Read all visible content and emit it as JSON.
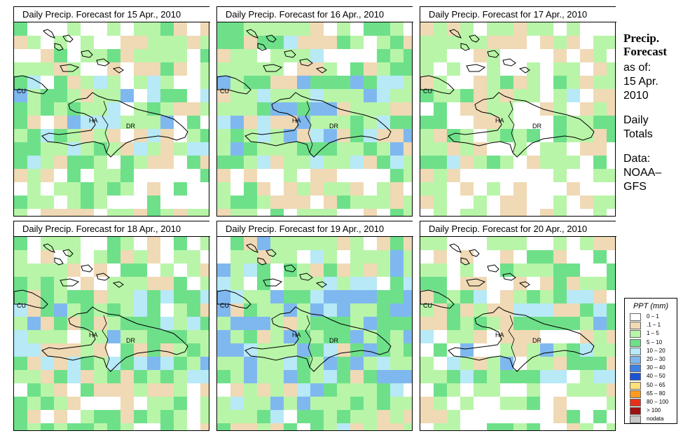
{
  "panels": [
    {
      "title": "Daily Precip. Forecast for  15 Apr., 2010",
      "seed": 11,
      "bias": 0.0
    },
    {
      "title": "Daily Precip. Forecast for  16 Apr., 2010",
      "seed": 23,
      "bias": 0.1
    },
    {
      "title": "Daily Precip. Forecast for  17 Apr., 2010",
      "seed": 37,
      "bias": -0.15
    },
    {
      "title": "Daily Precip. Forecast for  18 Apr., 2010",
      "seed": 41,
      "bias": 0.05
    },
    {
      "title": "Daily Precip. Forecast for  19 Apr., 2010",
      "seed": 53,
      "bias": 0.25
    },
    {
      "title": "Daily Precip. Forecast for  20 Apr., 2010",
      "seed": 67,
      "bias": 0.0
    }
  ],
  "country_labels": [
    "CU",
    "HA",
    "DR"
  ],
  "info": {
    "head1": "Precip.",
    "head2": "Forecast",
    "asof": "as of:",
    "date1": "15 Apr.",
    "date2": "2010",
    "totals1": "Daily",
    "totals2": "Totals",
    "src1": "Data:",
    "src2": "NOAA–",
    "src3": "GFS"
  },
  "legend": {
    "title": "PPT (mm)",
    "items": [
      {
        "label": "0 – 1",
        "color": "#ffffff"
      },
      {
        "label": ".1 – 1",
        "color": "#f0d9b5"
      },
      {
        "label": "1 – 5",
        "color": "#b8f5a8"
      },
      {
        "label": "5 – 10",
        "color": "#6ee08a"
      },
      {
        "label": "10 – 20",
        "color": "#b7e9f7"
      },
      {
        "label": "20 – 30",
        "color": "#7fb8ef"
      },
      {
        "label": "30 – 40",
        "color": "#3c82e6"
      },
      {
        "label": "40 – 50",
        "color": "#1c52d6"
      },
      {
        "label": "50 – 65",
        "color": "#ffe07a"
      },
      {
        "label": "65 – 80",
        "color": "#ff9a1e"
      },
      {
        "label": "80 – 100",
        "color": "#e83018"
      },
      {
        "label": "> 100",
        "color": "#a01010"
      },
      {
        "label": "nodata",
        "color": "#c8c8c8"
      }
    ]
  }
}
